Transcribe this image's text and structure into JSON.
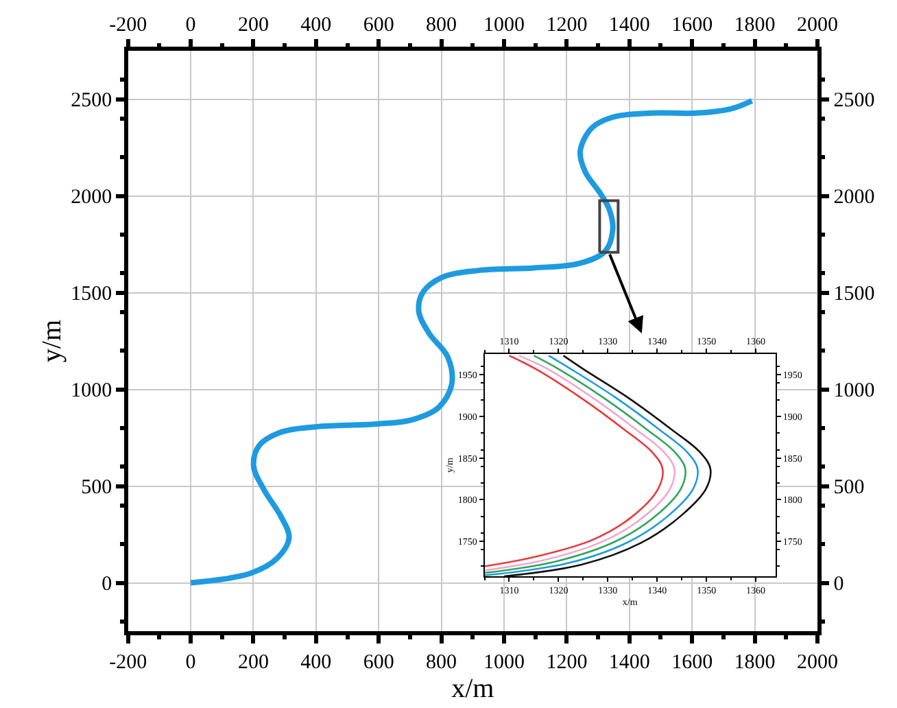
{
  "chart_data": [
    {
      "type": "line",
      "xlabel": "x/m",
      "ylabel": "y/m",
      "xlim": [
        -200,
        2000
      ],
      "xticks": [
        -200,
        0,
        200,
        400,
        600,
        800,
        1000,
        1200,
        1400,
        1600,
        1800,
        2000
      ],
      "x2lim": [
        -200,
        2000
      ],
      "x2ticks": [
        -200,
        0,
        200,
        400,
        600,
        800,
        1000,
        1200,
        1400,
        1600,
        1800,
        2000
      ],
      "ylim": [
        -250,
        2750
      ],
      "yticks": [
        0,
        500,
        1000,
        1500,
        2000,
        2500
      ],
      "y2lim": [
        -250,
        2750
      ],
      "y2ticks": [
        0,
        500,
        1000,
        1500,
        2000,
        2500
      ],
      "grid": true,
      "marker": "none",
      "line_style": "solid",
      "series": [
        {
          "color": "#1e9be0",
          "x": [
            0,
            192,
            276,
            314,
            289,
            234,
            201,
            218,
            289,
            402,
            594,
            707,
            791,
            833,
            820,
            761,
            728,
            741,
            803,
            916,
            1096,
            1238,
            1322,
            1347,
            1335,
            1305,
            1259,
            1243,
            1280,
            1347,
            1473,
            1615,
            1724,
            1791
          ],
          "values": [
            0,
            50,
            127,
            234,
            340,
            481,
            602,
            708,
            779,
            807,
            821,
            843,
            906,
            1027,
            1168,
            1289,
            1402,
            1501,
            1579,
            1614,
            1628,
            1650,
            1713,
            1827,
            1933,
            2018,
            2124,
            2230,
            2351,
            2407,
            2428,
            2428,
            2450,
            2492
          ]
        }
      ]
    },
    {
      "type": "line",
      "xlabel": "x/m",
      "ylabel": "y/m",
      "xlim": [
        1305,
        1364
      ],
      "xticks": [
        1310,
        1320,
        1330,
        1340,
        1350,
        1360
      ],
      "x2lim": [
        1305,
        1364
      ],
      "x2ticks": [
        1310,
        1320,
        1330,
        1340,
        1350,
        1360
      ],
      "ylim": [
        1708,
        1975
      ],
      "yticks": [
        1750,
        1800,
        1850,
        1900,
        1950
      ],
      "y2lim": [
        1708,
        1975
      ],
      "y2ticks": [
        1750,
        1800,
        1850,
        1900,
        1950
      ],
      "grid": false,
      "marker": "none",
      "line_style": "solid",
      "series": [
        {
          "color": "#e83a3a",
          "x": [
            1310,
            1315.4,
            1324.4,
            1333.4,
            1339,
            1341.1,
            1340.2,
            1335,
            1327,
            1315,
            1305
          ],
          "values": [
            1973,
            1957,
            1923,
            1884,
            1857,
            1837,
            1813,
            1780,
            1752,
            1731,
            1720
          ]
        },
        {
          "color": "#f4a6d0",
          "x": [
            1312,
            1317.8,
            1326.8,
            1335.8,
            1341.4,
            1343.5,
            1342.6,
            1337.4,
            1329.4,
            1317.4,
            1305
          ],
          "values": [
            1973,
            1957,
            1923,
            1884,
            1857,
            1837,
            1813,
            1780,
            1751,
            1728,
            1715
          ]
        },
        {
          "color": "#2fa65a",
          "x": [
            1315,
            1320,
            1329,
            1338,
            1343.6,
            1345.7,
            1344.8,
            1339.6,
            1331.6,
            1319.6,
            1305
          ],
          "values": [
            1973,
            1957,
            1923,
            1884,
            1857,
            1837,
            1813,
            1780,
            1750,
            1726,
            1712
          ]
        },
        {
          "color": "#1e9be0",
          "x": [
            1318,
            1322.5,
            1331.5,
            1340.5,
            1346.1,
            1348.2,
            1347.3,
            1342.1,
            1334.1,
            1322.1,
            1305
          ],
          "values": [
            1973,
            1957,
            1923,
            1884,
            1857,
            1837,
            1813,
            1780,
            1749,
            1724,
            1709
          ]
        },
        {
          "color": "#111111",
          "x": [
            1321,
            1325,
            1334,
            1343,
            1348.7,
            1350.8,
            1349.9,
            1344.7,
            1336.7,
            1324.7,
            1309
          ],
          "values": [
            1973,
            1957,
            1923,
            1884,
            1857,
            1837,
            1813,
            1780,
            1748,
            1722,
            1708
          ]
        }
      ]
    }
  ]
}
